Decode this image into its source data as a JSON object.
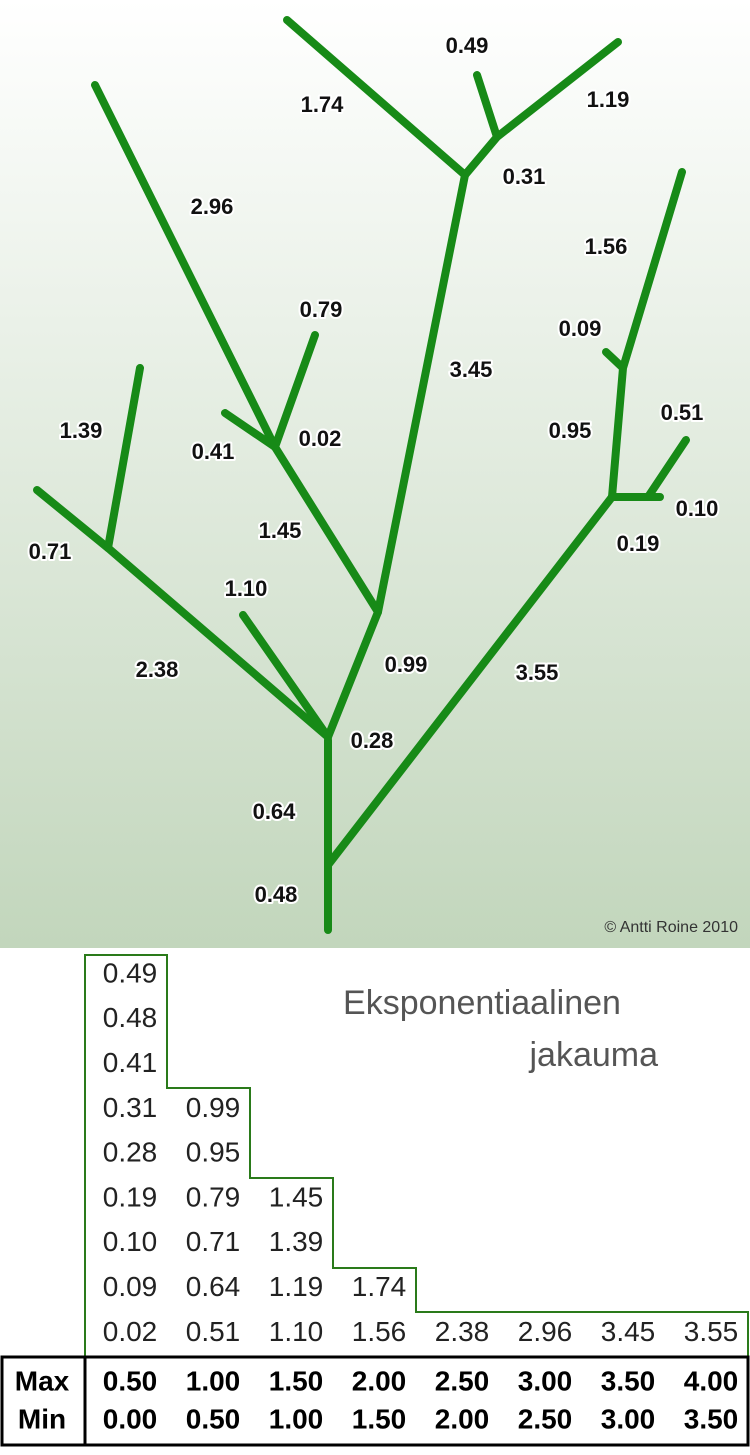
{
  "tree": {
    "labels": [
      "0.49",
      "1.74",
      "1.19",
      "0.31",
      "2.96",
      "1.56",
      "0.79",
      "0.09",
      "3.45",
      "1.39",
      "0.95",
      "0.51",
      "0.41",
      "0.02",
      "0.10",
      "0.71",
      "0.19",
      "1.45",
      "1.10",
      "0.99",
      "2.38",
      "3.55",
      "0.28",
      "0.64",
      "0.48"
    ],
    "copyright": "© Antti Roine 2010"
  },
  "title": {
    "line1": "Eksponentiaalinen",
    "line2": "jakauma"
  },
  "table": {
    "columns": [
      [
        "0.49",
        "0.48",
        "0.41",
        "0.31",
        "0.28",
        "0.19",
        "0.10",
        "0.09",
        "0.02"
      ],
      [
        "0.99",
        "0.95",
        "0.79",
        "0.71",
        "0.64",
        "0.51"
      ],
      [
        "1.45",
        "1.39",
        "1.19",
        "1.10"
      ],
      [
        "1.74",
        "1.56"
      ],
      [
        "2.38"
      ],
      [
        "2.96"
      ],
      [
        "3.45"
      ],
      [
        "3.55"
      ]
    ],
    "rows": [
      {
        "label": "Max",
        "values": [
          "0.50",
          "1.00",
          "1.50",
          "2.00",
          "2.50",
          "3.00",
          "3.50",
          "4.00"
        ]
      },
      {
        "label": "Min",
        "values": [
          "0.00",
          "0.50",
          "1.00",
          "1.50",
          "2.00",
          "2.50",
          "3.00",
          "3.50"
        ]
      }
    ]
  }
}
